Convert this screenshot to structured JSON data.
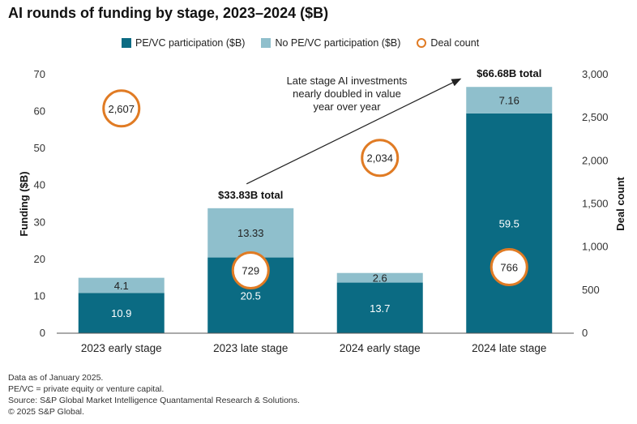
{
  "title": "AI rounds of funding by stage, 2023–2024 ($B)",
  "legend": {
    "pevc": "PE/VC participation ($B)",
    "no_pevc": "No PE/VC participation ($B)",
    "deals": "Deal count"
  },
  "colors": {
    "pevc": "#0B6B83",
    "no_pevc": "#8FBFCC",
    "deals": "#E07B24"
  },
  "chart_data": {
    "type": "bar",
    "stacked": true,
    "categories": [
      "2023 early stage",
      "2023 late stage",
      "2024 early stage",
      "2024 late stage"
    ],
    "series": [
      {
        "name": "PE/VC participation ($B)",
        "values": [
          10.9,
          20.5,
          13.7,
          59.5
        ]
      },
      {
        "name": "No PE/VC participation ($B)",
        "values": [
          4.1,
          13.33,
          2.6,
          7.16
        ]
      }
    ],
    "deal_count": {
      "name": "Deal count",
      "values": [
        2607,
        729,
        2034,
        766
      ],
      "labels": [
        "2,607",
        "729",
        "2,034",
        "766"
      ]
    },
    "pevc_labels": [
      "10.9",
      "20.5",
      "13.7",
      "59.5"
    ],
    "no_pevc_labels": [
      "4.1",
      "13.33",
      "2.6",
      "7.16"
    ],
    "totals": [
      {
        "category": "2023 late stage",
        "label": "$33.83B total"
      },
      {
        "category": "2024 late stage",
        "label": "$66.68B total"
      }
    ],
    "ylabel": "Funding ($B)",
    "y2label": "Deal count",
    "ylim": [
      0,
      70
    ],
    "y2lim": [
      0,
      3000
    ],
    "yticks": [
      0,
      10,
      20,
      30,
      40,
      50,
      60,
      70
    ],
    "y2ticks": [
      0,
      500,
      1000,
      1500,
      2000,
      2500,
      3000
    ],
    "y2tick_labels": [
      "0",
      "500",
      "1,000",
      "1,500",
      "2,000",
      "2,500",
      "3,000"
    ],
    "annotation": [
      "Late stage AI investments",
      "nearly doubled in value",
      "year over year"
    ],
    "grid": false
  },
  "footer": [
    "Data as of January 2025.",
    "PE/VC = private equity or venture capital.",
    "Source: S&P Global Market Intelligence Quantamental Research & Solutions.",
    "© 2025 S&P Global."
  ]
}
